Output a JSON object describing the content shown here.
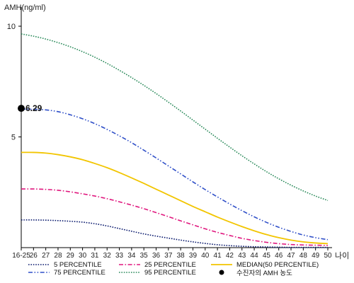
{
  "chart_data": {
    "type": "line",
    "ylabel": "AMH(ng/ml)",
    "xlabel": "나이",
    "ylim": [
      0,
      10.8
    ],
    "yticks": [
      5,
      10
    ],
    "categories": [
      "16-25",
      "26",
      "27",
      "28",
      "29",
      "30",
      "31",
      "32",
      "33",
      "34",
      "35",
      "36",
      "37",
      "38",
      "39",
      "40",
      "41",
      "42",
      "43",
      "44",
      "45",
      "46",
      "47",
      "48",
      "49",
      "50"
    ],
    "series": [
      {
        "name": "5 PERCENTILE",
        "color": "#0a1a6e",
        "style": "dotted",
        "values": [
          1.25,
          1.25,
          1.24,
          1.22,
          1.19,
          1.15,
          1.08,
          0.98,
          0.86,
          0.74,
          0.62,
          0.52,
          0.43,
          0.34,
          0.26,
          0.19,
          0.13,
          0.09,
          0.06,
          0.04,
          0.03,
          0.02,
          0.01,
          0.01,
          0.01,
          0.01
        ]
      },
      {
        "name": "25 PERCENTILE",
        "color": "#e0177e",
        "style": "dashdot",
        "values": [
          2.65,
          2.65,
          2.63,
          2.59,
          2.52,
          2.43,
          2.33,
          2.21,
          2.07,
          1.92,
          1.76,
          1.58,
          1.4,
          1.21,
          1.03,
          0.85,
          0.69,
          0.55,
          0.42,
          0.32,
          0.24,
          0.18,
          0.14,
          0.12,
          0.11,
          0.1
        ]
      },
      {
        "name": "MEDIAN(50 PERCENTILE)",
        "color": "#f2c500",
        "style": "solid",
        "values": [
          4.3,
          4.3,
          4.27,
          4.2,
          4.1,
          3.97,
          3.8,
          3.61,
          3.39,
          3.15,
          2.9,
          2.64,
          2.38,
          2.12,
          1.86,
          1.62,
          1.38,
          1.16,
          0.95,
          0.76,
          0.59,
          0.45,
          0.34,
          0.26,
          0.21,
          0.18
        ]
      },
      {
        "name": "75 PERCENTILE",
        "color": "#2f4fc8",
        "style": "dashdotdot",
        "values": [
          6.25,
          6.25,
          6.22,
          6.14,
          6.0,
          5.82,
          5.6,
          5.34,
          5.05,
          4.74,
          4.4,
          4.05,
          3.69,
          3.33,
          2.97,
          2.62,
          2.29,
          1.97,
          1.67,
          1.39,
          1.14,
          0.92,
          0.73,
          0.57,
          0.45,
          0.36
        ]
      },
      {
        "name": "95 PERCENTILE",
        "color": "#2a8a5a",
        "style": "dotted",
        "values": [
          9.65,
          9.55,
          9.42,
          9.26,
          9.07,
          8.85,
          8.6,
          8.32,
          8.01,
          7.68,
          7.33,
          6.96,
          6.57,
          6.17,
          5.76,
          5.35,
          4.94,
          4.54,
          4.15,
          3.78,
          3.43,
          3.11,
          2.82,
          2.56,
          2.33,
          2.13
        ]
      }
    ],
    "patient": {
      "label": "수진자의 AMH 농도",
      "value": 6.29,
      "value_label": "6.29",
      "category": "16-25",
      "color": "#000000"
    },
    "legend": {
      "placement": "bottom"
    },
    "grid": false
  }
}
